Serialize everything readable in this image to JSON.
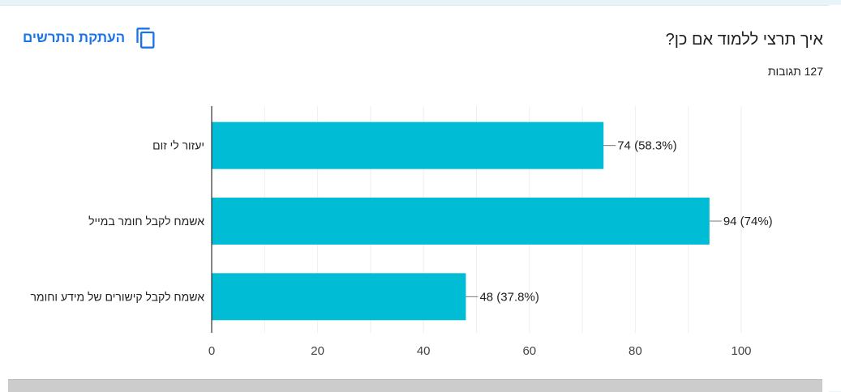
{
  "header": {
    "copy_label": "העתקת התרשים",
    "question": "איך תרצי ללמוד אם כן?",
    "responses": "127 תגובות"
  },
  "colors": {
    "bar": "#00bcd4",
    "accent": "#1a73e8",
    "text": "#202124",
    "grid": "#eeeeee",
    "axis": "#333333"
  },
  "chart_data": {
    "type": "bar",
    "orientation": "horizontal",
    "categories": [
      "יעזור לי זום",
      "אשמח לקבל חומר במייל",
      "אשמח לקבל קישורים של מידע וחומר"
    ],
    "values": [
      74,
      94,
      48
    ],
    "data_labels": [
      "74 (58.3%)",
      "94 (74%)",
      "48 (37.8%)"
    ],
    "xlim": [
      0,
      100
    ],
    "x_ticks": [
      "0",
      "20",
      "40",
      "60",
      "80",
      "100"
    ],
    "grid": true,
    "legend": false
  }
}
